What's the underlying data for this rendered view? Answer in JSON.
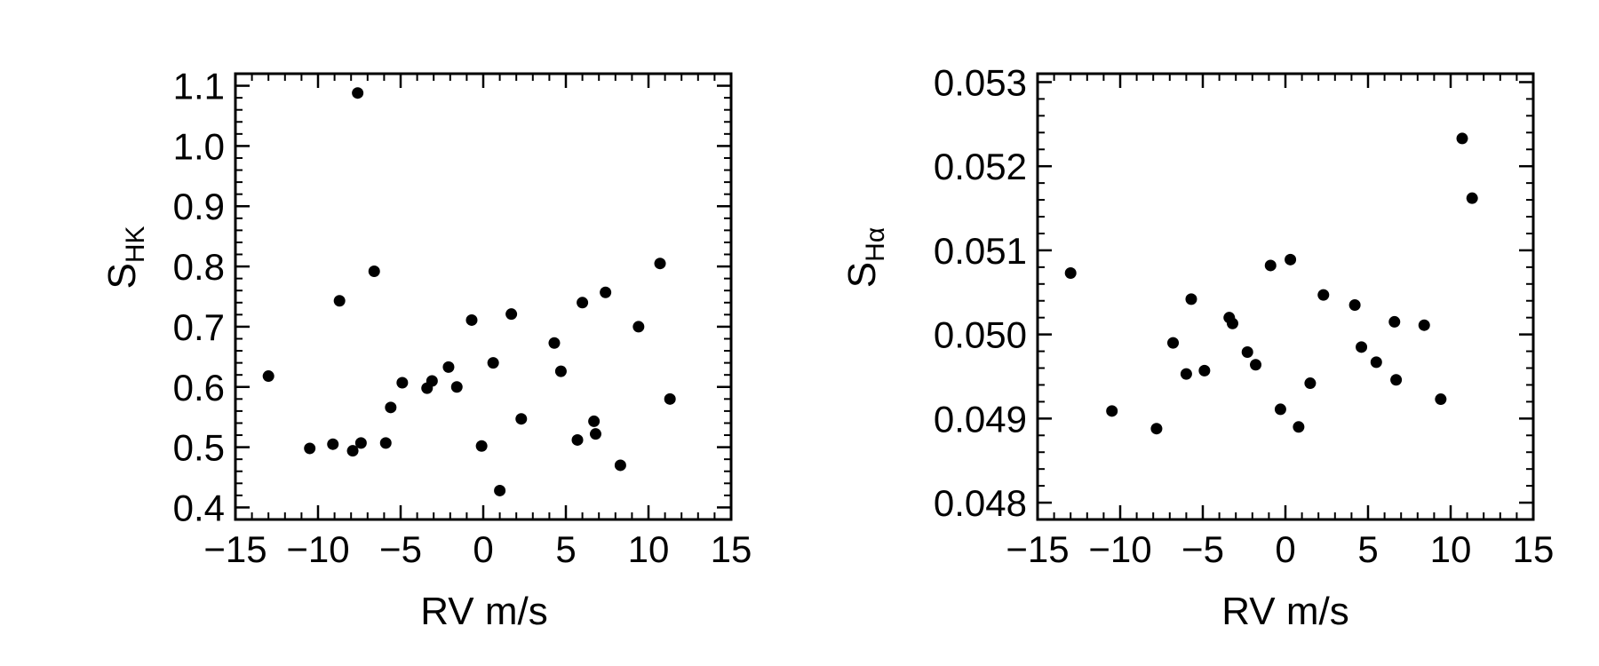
{
  "chart_data": [
    {
      "type": "scatter",
      "xlabel": "RV m/s",
      "ylabel_main": "S",
      "ylabel_sub": "HK",
      "xlim": [
        -15,
        15
      ],
      "ylim": [
        0.38,
        1.12
      ],
      "xticks": [
        -15,
        -10,
        -5,
        0,
        5,
        10,
        15
      ],
      "xtick_labels": [
        "−15",
        "−10",
        "−5",
        "0",
        "5",
        "10",
        "15"
      ],
      "yticks": [
        0.4,
        0.5,
        0.6,
        0.7,
        0.8,
        0.9,
        1.0,
        1.1
      ],
      "ytick_labels": [
        "0.4",
        "0.5",
        "0.6",
        "0.7",
        "0.8",
        "0.9",
        "1.0",
        "1.1"
      ],
      "points": [
        {
          "x": -13.0,
          "y": 0.618
        },
        {
          "x": -10.5,
          "y": 0.498
        },
        {
          "x": -9.1,
          "y": 0.505
        },
        {
          "x": -8.7,
          "y": 0.743
        },
        {
          "x": -7.9,
          "y": 0.494
        },
        {
          "x": -7.6,
          "y": 1.088
        },
        {
          "x": -7.4,
          "y": 0.507
        },
        {
          "x": -6.6,
          "y": 0.792
        },
        {
          "x": -5.9,
          "y": 0.507
        },
        {
          "x": -5.6,
          "y": 0.566
        },
        {
          "x": -4.9,
          "y": 0.607
        },
        {
          "x": -3.4,
          "y": 0.598
        },
        {
          "x": -3.1,
          "y": 0.61
        },
        {
          "x": -2.1,
          "y": 0.633
        },
        {
          "x": -1.6,
          "y": 0.6
        },
        {
          "x": -0.7,
          "y": 0.711
        },
        {
          "x": -0.1,
          "y": 0.502
        },
        {
          "x": 0.6,
          "y": 0.64
        },
        {
          "x": 1.0,
          "y": 0.428
        },
        {
          "x": 1.7,
          "y": 0.721
        },
        {
          "x": 2.3,
          "y": 0.547
        },
        {
          "x": 4.3,
          "y": 0.673
        },
        {
          "x": 4.7,
          "y": 0.626
        },
        {
          "x": 5.7,
          "y": 0.512
        },
        {
          "x": 6.0,
          "y": 0.74
        },
        {
          "x": 6.7,
          "y": 0.543
        },
        {
          "x": 6.8,
          "y": 0.522
        },
        {
          "x": 7.4,
          "y": 0.757
        },
        {
          "x": 8.3,
          "y": 0.47
        },
        {
          "x": 9.4,
          "y": 0.7
        },
        {
          "x": 10.7,
          "y": 0.805
        },
        {
          "x": 11.3,
          "y": 0.58
        }
      ]
    },
    {
      "type": "scatter",
      "xlabel": "RV m/s",
      "ylabel_main": "S",
      "ylabel_sub": "Hα",
      "xlim": [
        -15,
        15
      ],
      "ylim": [
        0.0478,
        0.0531
      ],
      "xticks": [
        -15,
        -10,
        -5,
        0,
        5,
        10,
        15
      ],
      "xtick_labels": [
        "−15",
        "−10",
        "−5",
        "0",
        "5",
        "10",
        "15"
      ],
      "yticks": [
        0.048,
        0.049,
        0.05,
        0.051,
        0.052,
        0.053
      ],
      "ytick_labels": [
        "0.048",
        "0.049",
        "0.050",
        "0.051",
        "0.052",
        "0.053"
      ],
      "points": [
        {
          "x": -13.0,
          "y": 0.05073
        },
        {
          "x": -10.5,
          "y": 0.04909
        },
        {
          "x": -7.8,
          "y": 0.04888
        },
        {
          "x": -6.8,
          "y": 0.0499
        },
        {
          "x": -6.0,
          "y": 0.04953
        },
        {
          "x": -5.7,
          "y": 0.05042
        },
        {
          "x": -4.9,
          "y": 0.04957
        },
        {
          "x": -3.4,
          "y": 0.0502
        },
        {
          "x": -3.2,
          "y": 0.05013
        },
        {
          "x": -2.3,
          "y": 0.04979
        },
        {
          "x": -1.8,
          "y": 0.04964
        },
        {
          "x": -0.9,
          "y": 0.05082
        },
        {
          "x": -0.3,
          "y": 0.04911
        },
        {
          "x": 0.3,
          "y": 0.05089
        },
        {
          "x": 0.8,
          "y": 0.0489
        },
        {
          "x": 1.5,
          "y": 0.04942
        },
        {
          "x": 2.3,
          "y": 0.05047
        },
        {
          "x": 4.2,
          "y": 0.05035
        },
        {
          "x": 4.6,
          "y": 0.04985
        },
        {
          "x": 5.5,
          "y": 0.04967
        },
        {
          "x": 6.6,
          "y": 0.05015
        },
        {
          "x": 6.7,
          "y": 0.04946
        },
        {
          "x": 8.4,
          "y": 0.05011
        },
        {
          "x": 9.4,
          "y": 0.04923
        },
        {
          "x": 10.7,
          "y": 0.05233
        },
        {
          "x": 11.3,
          "y": 0.05162
        }
      ]
    }
  ]
}
